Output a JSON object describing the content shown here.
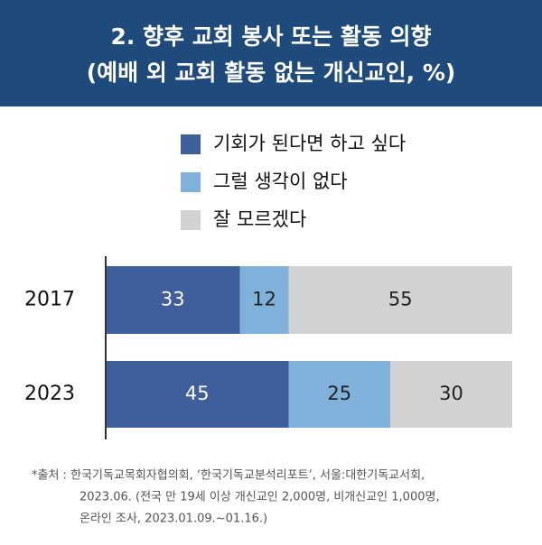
{
  "chart_data": {
    "type": "bar",
    "orientation": "horizontal",
    "stacked": true,
    "title": "2. 향후 교회 봉사 또는 활동 의향",
    "subtitle": "(예배 외 교회 활동 없는 개신교인, %)",
    "categories": [
      "2017",
      "2023"
    ],
    "series": [
      {
        "name": "기회가 된다면 하고 싶다",
        "color": "#3e5f9c",
        "values": [
          33,
          45
        ]
      },
      {
        "name": "그럴 생각이 없다",
        "color": "#80b1da",
        "values": [
          12,
          25
        ]
      },
      {
        "name": "잘 모르겠다",
        "color": "#d2d2d2",
        "values": [
          55,
          30
        ]
      }
    ],
    "xlim": [
      0,
      100
    ],
    "notes": [
      "*출처 : 한국기독교목회자협의회, ‘한국기독교분석리포트’, 서울:대한기독교서회,",
      "2023.06. (전국 만 19세 이상 개신교인 2,000명, 비개신교인 1,000명,",
      "온라인 조사, 2023.01.09.~01.16.)"
    ]
  }
}
